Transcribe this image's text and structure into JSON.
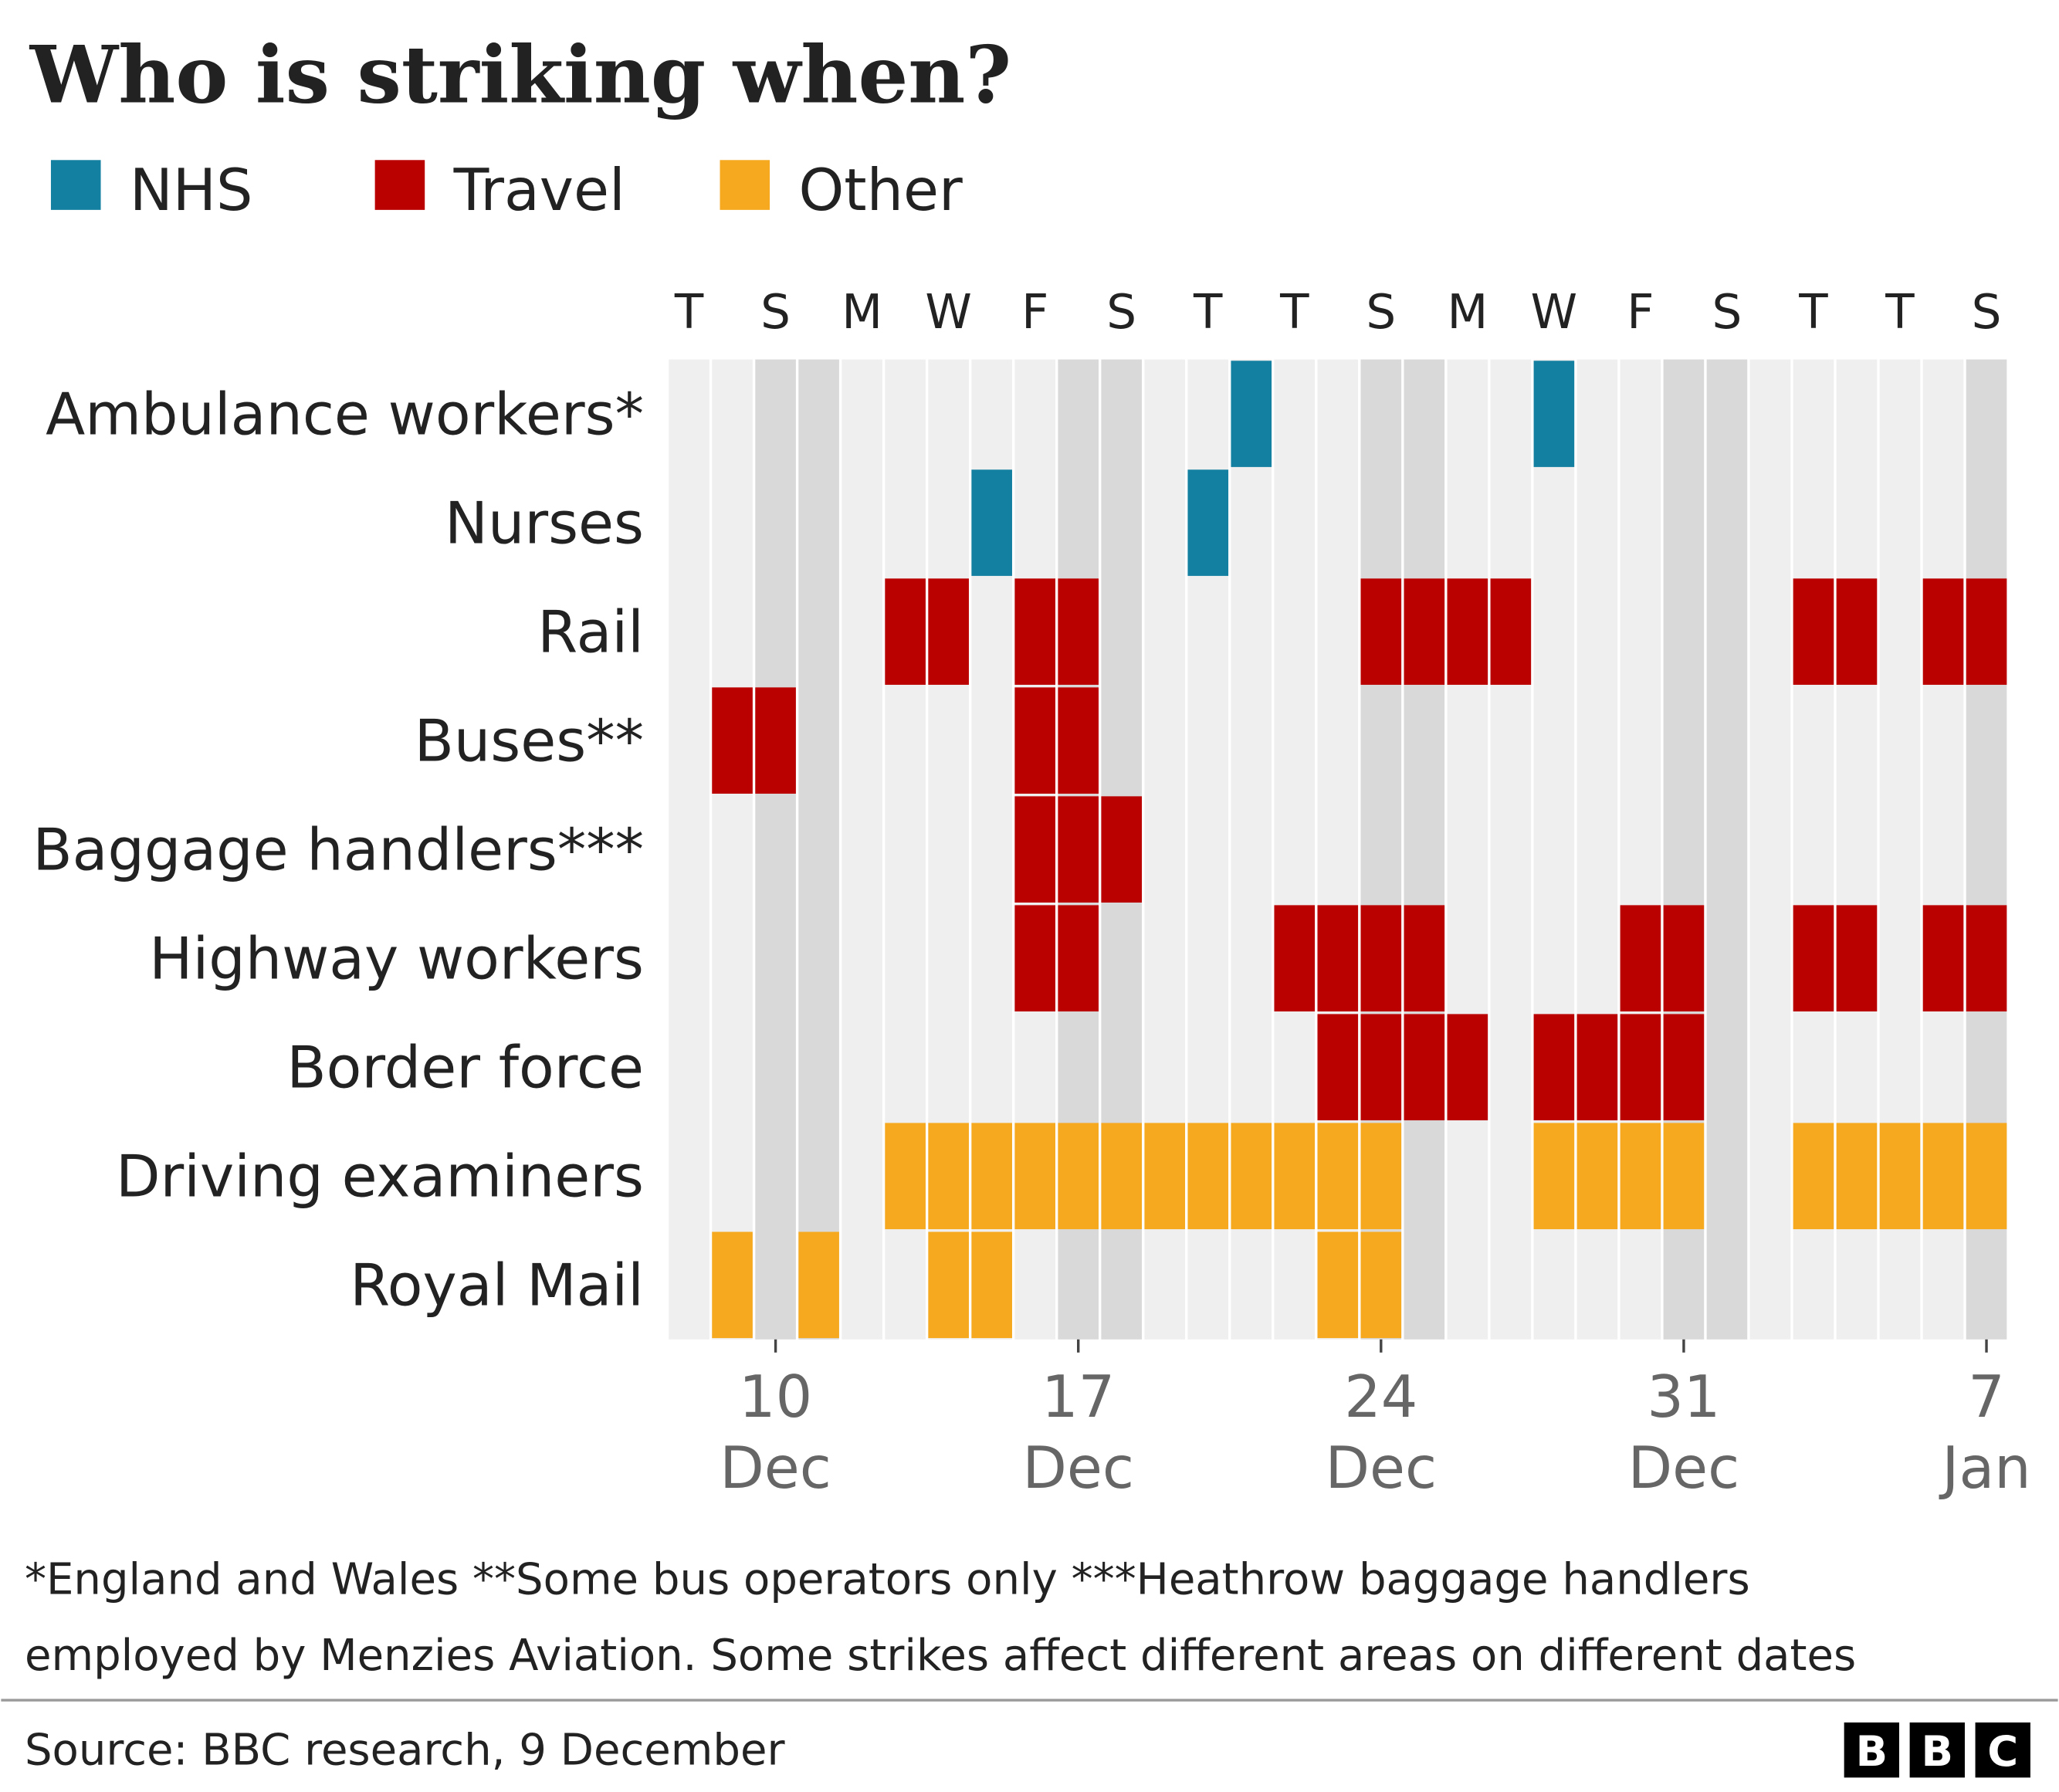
{
  "chart_data": {
    "type": "calendar",
    "title": "Who is striking when?",
    "series": [
      {
        "name": "NHS",
        "color": "#1380a1"
      },
      {
        "name": "Travel",
        "color": "#bb0000"
      },
      {
        "name": "Other",
        "color": "#f6a91e"
      }
    ],
    "columns": [
      "T",
      null,
      "S",
      null,
      "M",
      null,
      "W",
      null,
      "F",
      null,
      "S",
      null,
      "T",
      null,
      "T",
      null,
      "S",
      null,
      "M",
      null,
      "W",
      null,
      "F",
      null,
      "S",
      null,
      "T",
      null,
      "T",
      null,
      "S"
    ],
    "shaded": [
      0,
      0,
      1,
      1,
      0,
      0,
      0,
      0,
      0,
      1,
      1,
      0,
      0,
      0,
      0,
      0,
      1,
      1,
      0,
      0,
      0,
      0,
      0,
      1,
      1,
      0,
      0,
      0,
      0,
      0,
      1
    ],
    "rows": [
      {
        "name": "Ambulance workers*",
        "group": "NHS",
        "values": [
          0,
          0,
          0,
          0,
          0,
          0,
          0,
          0,
          0,
          0,
          0,
          0,
          0,
          1,
          0,
          0,
          0,
          0,
          0,
          0,
          1,
          0,
          0,
          0,
          0,
          0,
          0,
          0,
          0,
          0,
          0
        ]
      },
      {
        "name": "Nurses",
        "group": "NHS",
        "values": [
          0,
          0,
          0,
          0,
          0,
          0,
          0,
          1,
          0,
          0,
          0,
          0,
          1,
          0,
          0,
          0,
          0,
          0,
          0,
          0,
          0,
          0,
          0,
          0,
          0,
          0,
          0,
          0,
          0,
          0,
          0
        ]
      },
      {
        "name": "Rail",
        "group": "Travel",
        "values": [
          0,
          0,
          0,
          0,
          0,
          1,
          1,
          0,
          1,
          1,
          0,
          0,
          0,
          0,
          0,
          0,
          1,
          1,
          1,
          1,
          0,
          0,
          0,
          0,
          0,
          0,
          1,
          1,
          0,
          1,
          1
        ]
      },
      {
        "name": "Buses**",
        "group": "Travel",
        "values": [
          0,
          1,
          1,
          0,
          0,
          0,
          0,
          0,
          1,
          1,
          0,
          0,
          0,
          0,
          0,
          0,
          0,
          0,
          0,
          0,
          0,
          0,
          0,
          0,
          0,
          0,
          0,
          0,
          0,
          0,
          0
        ]
      },
      {
        "name": "Baggage handlers***",
        "group": "Travel",
        "values": [
          0,
          0,
          0,
          0,
          0,
          0,
          0,
          0,
          1,
          1,
          1,
          0,
          0,
          0,
          0,
          0,
          0,
          0,
          0,
          0,
          0,
          0,
          0,
          0,
          0,
          0,
          0,
          0,
          0,
          0,
          0
        ]
      },
      {
        "name": "Highway workers",
        "group": "Travel",
        "values": [
          0,
          0,
          0,
          0,
          0,
          0,
          0,
          0,
          1,
          1,
          0,
          0,
          0,
          0,
          1,
          1,
          1,
          1,
          0,
          0,
          0,
          0,
          1,
          1,
          0,
          0,
          1,
          1,
          0,
          1,
          1
        ]
      },
      {
        "name": "Border force",
        "group": "Travel",
        "values": [
          0,
          0,
          0,
          0,
          0,
          0,
          0,
          0,
          0,
          0,
          0,
          0,
          0,
          0,
          0,
          1,
          1,
          1,
          1,
          0,
          1,
          1,
          1,
          1,
          0,
          0,
          0,
          0,
          0,
          0,
          0
        ]
      },
      {
        "name": "Driving examiners",
        "group": "Other",
        "values": [
          0,
          0,
          0,
          0,
          0,
          1,
          1,
          1,
          1,
          1,
          1,
          1,
          1,
          1,
          1,
          1,
          1,
          0,
          0,
          0,
          1,
          1,
          1,
          1,
          0,
          0,
          1,
          1,
          1,
          1,
          1
        ]
      },
      {
        "name": "Royal Mail",
        "group": "Other",
        "values": [
          0,
          1,
          0,
          1,
          0,
          0,
          1,
          1,
          0,
          0,
          0,
          0,
          0,
          0,
          0,
          1,
          1,
          0,
          0,
          0,
          0,
          0,
          0,
          0,
          0,
          0,
          0,
          0,
          0,
          0,
          0
        ]
      }
    ],
    "xlim": [
      0,
      31
    ],
    "xticks": [
      {
        "value": 2,
        "label": "10"
      },
      {
        "value": 9,
        "label": "17"
      },
      {
        "value": 16,
        "label": "24"
      },
      {
        "value": 23,
        "label": "31"
      },
      {
        "value": 30,
        "label": "7"
      }
    ],
    "xtick_months": [
      "Dec",
      "Dec",
      "Dec",
      "Dec",
      "Jan"
    ],
    "footnote": [
      "*England and Wales **Some bus operators only ***Heathrow baggage handlers",
      "employed by Menzies Aviation. Some strikes affect different areas on different dates"
    ],
    "source": "Source: BBC research, 9 December",
    "logo": [
      "B",
      "B",
      "C"
    ]
  }
}
